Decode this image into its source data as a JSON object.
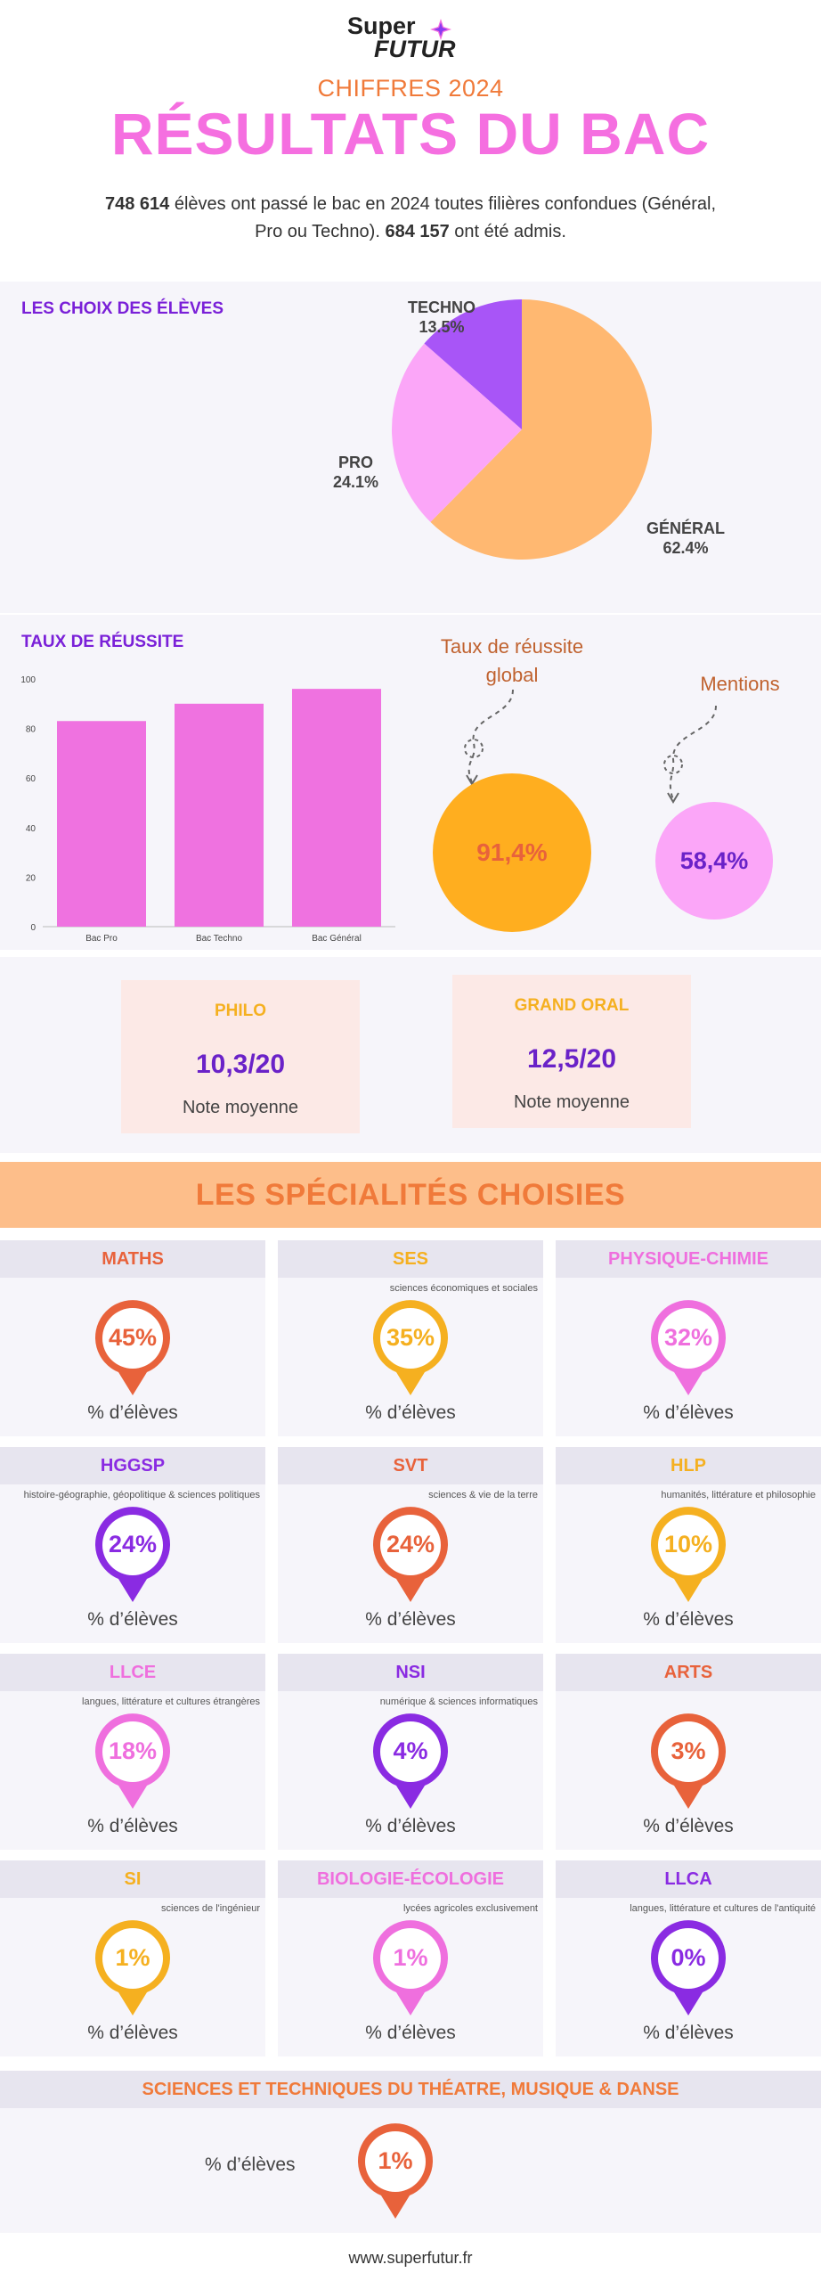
{
  "brand": {
    "line1": "Super",
    "line2": "FUTUR"
  },
  "header": {
    "year_label": "CHIFFRES 2024",
    "title": "RÉSULTATS DU BAC",
    "intro_num1": "748 614",
    "intro_text1": " élèves ont passé le bac en 2024 toutes filières confondues (Général, Pro ou Techno). ",
    "intro_num2": "684 157",
    "intro_text2": " ont été admis."
  },
  "colors": {
    "pink": "#f56fe0",
    "purple": "#7a20d8",
    "orange": "#f07a3a",
    "yellow": "#f5b020",
    "peach": "#fdbe8a",
    "light_purple": "#a44ff0"
  },
  "choices": {
    "title": "LES CHOIX DES ÉLÈVES"
  },
  "rates": {
    "title": "TAUX DE RÉUSSITE",
    "global_label_1": "Taux de réussite",
    "global_label_2": "global",
    "global_value": "91,4%",
    "mentions_label": "Mentions",
    "mentions_value": "58,4%"
  },
  "chart_data": [
    {
      "type": "pie",
      "title": "LES CHOIX DES ÉLÈVES",
      "slices": [
        {
          "label": "GÉNÉRAL",
          "value": 62.4,
          "display": "62.4%",
          "color": "#ffb871"
        },
        {
          "label": "PRO",
          "value": 24.1,
          "display": "24.1%",
          "color": "#fba6f8"
        },
        {
          "label": "TECHNO",
          "value": 13.5,
          "display": "13.5%",
          "color": "#a855f7"
        }
      ]
    },
    {
      "type": "bar",
      "title": "TAUX DE RÉUSSITE",
      "categories": [
        "Bac Pro",
        "Bac Techno",
        "Bac Général"
      ],
      "values": [
        83,
        90,
        96
      ],
      "ylim": [
        0,
        100
      ],
      "yticks": [
        "0",
        "20",
        "40",
        "60",
        "80",
        "100"
      ],
      "color": "#ef72e0",
      "grid": false
    }
  ],
  "notes": [
    {
      "title": "PHILO",
      "value": "10,3/20",
      "sub": "Note moyenne"
    },
    {
      "title": "GRAND ORAL",
      "value": "12,5/20",
      "sub": "Note moyenne"
    }
  ],
  "specialties": {
    "title": "LES SPÉCIALITÉS CHOISIES",
    "foot": "% d’élèves",
    "items": [
      {
        "name": "MATHS",
        "sub": "",
        "value": "45%",
        "color": "#e8623b"
      },
      {
        "name": "SES",
        "sub": "sciences économiques et sociales",
        "value": "35%",
        "color": "#f5b020"
      },
      {
        "name": "PHYSIQUE-CHIMIE",
        "sub": "",
        "value": "32%",
        "color": "#ef6fde"
      },
      {
        "name": "HGGSP",
        "sub": "histoire-géographie, géopolitique & sciences politiques",
        "value": "24%",
        "color": "#8a2be2"
      },
      {
        "name": "SVT",
        "sub": "sciences & vie de la terre",
        "value": "24%",
        "color": "#e8623b"
      },
      {
        "name": "HLP",
        "sub": "humanités, littérature et philosophie",
        "value": "10%",
        "color": "#f5b020"
      },
      {
        "name": "LLCE",
        "sub": "langues, littérature et cultures étrangères",
        "value": "18%",
        "color": "#ef6fde"
      },
      {
        "name": "NSI",
        "sub": "numérique & sciences informatiques",
        "value": "4%",
        "color": "#8a2be2"
      },
      {
        "name": "ARTS",
        "sub": "",
        "value": "3%",
        "color": "#e8623b"
      },
      {
        "name": "SI",
        "sub": "sciences de l'ingénieur",
        "value": "1%",
        "color": "#f5b020"
      },
      {
        "name": "BIOLOGIE-ÉCOLOGIE",
        "sub": "lycées agricoles exclusivement",
        "value": "1%",
        "color": "#ef6fde"
      },
      {
        "name": "LLCA",
        "sub": "langues, littérature et cultures de l'antiquité",
        "value": "0%",
        "color": "#8a2be2"
      }
    ],
    "wide": {
      "name": "SCIENCES ET TECHNIQUES DU THÉATRE, MUSIQUE & DANSE",
      "value": "1%",
      "color": "#e8623b"
    }
  },
  "footer": "www.superfutur.fr"
}
